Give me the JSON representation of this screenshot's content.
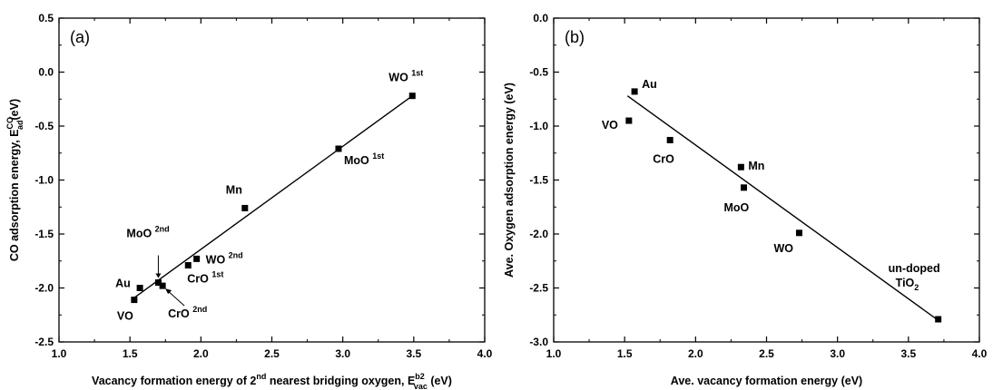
{
  "figure": {
    "panels": [
      {
        "id": "a",
        "panel_label": "(a)",
        "ylabel_main": "CO adsorption energy, E",
        "ylabel_sup": "CO",
        "ylabel_sub": "ad",
        "ylabel_tail": "(eV)",
        "xlabel_main": "Vacancy formation energy of 2",
        "xlabel_sup": "nd",
        "xlabel_mid": " nearest bridging oxygen, E",
        "xlabel_sup2": "b2",
        "xlabel_sub2": "vac",
        "xlabel_tail": " (eV)"
      },
      {
        "id": "b",
        "panel_label": "(b)",
        "ylabel_main": "Ave. Oxygen adsorption energy (eV)",
        "xlabel_main": "Ave. vacancy formation energy (eV)"
      }
    ]
  },
  "chart_data": [
    {
      "type": "scatter",
      "panel": "(a)",
      "xlim": [
        1.0,
        4.0
      ],
      "ylim": [
        -2.5,
        0.5
      ],
      "xticks": [
        1.0,
        1.5,
        2.0,
        2.5,
        3.0,
        3.5,
        4.0
      ],
      "yticks": [
        -2.5,
        -2.0,
        -1.5,
        -1.0,
        -0.5,
        0.0,
        0.5
      ],
      "xtick_labels": [
        "1.0",
        "1.5",
        "2.0",
        "2.5",
        "3.0",
        "3.5",
        "4.0"
      ],
      "ytick_labels": [
        "-2.5",
        "-2.0",
        "-1.5",
        "-1.0",
        "-0.5",
        "0.0",
        "0.5"
      ],
      "grid": false,
      "points": [
        {
          "label": "WO",
          "sup": "1st",
          "x": 3.49,
          "y": -0.22
        },
        {
          "label": "MoO",
          "sup": "1st",
          "x": 2.97,
          "y": -0.71
        },
        {
          "label": "Mn",
          "sup": "",
          "x": 2.31,
          "y": -1.26
        },
        {
          "label": "WO",
          "sup": "2nd",
          "x": 1.97,
          "y": -1.73
        },
        {
          "label": "CrO",
          "sup": "1st",
          "x": 1.91,
          "y": -1.79
        },
        {
          "label": "MoO",
          "sup": "2nd",
          "x": 1.7,
          "y": -1.95
        },
        {
          "label": "CrO",
          "sup": "2nd",
          "x": 1.73,
          "y": -1.98
        },
        {
          "label": "Au",
          "sup": "",
          "x": 1.57,
          "y": -2.0
        },
        {
          "label": "VO",
          "sup": "",
          "x": 1.53,
          "y": -2.11
        }
      ],
      "fit_line": {
        "x": [
          1.52,
          3.49
        ],
        "y": [
          -2.1,
          -0.22
        ]
      }
    },
    {
      "type": "scatter",
      "panel": "(b)",
      "xlim": [
        1.0,
        4.0
      ],
      "ylim": [
        -3.0,
        0.0
      ],
      "xticks": [
        1.0,
        1.5,
        2.0,
        2.5,
        3.0,
        3.5,
        4.0
      ],
      "yticks": [
        -3.0,
        -2.5,
        -2.0,
        -1.5,
        -1.0,
        -0.5,
        0.0
      ],
      "xtick_labels": [
        "1.0",
        "1.5",
        "2.0",
        "2.5",
        "3.0",
        "3.5",
        "4.0"
      ],
      "ytick_labels": [
        "-3.0",
        "-2.5",
        "-2.0",
        "-1.5",
        "-1.0",
        "-0.5",
        "0.0"
      ],
      "grid": false,
      "points": [
        {
          "label": "Au",
          "sub": "",
          "x": 1.57,
          "y": -0.68
        },
        {
          "label": "VO",
          "sub": "",
          "x": 1.53,
          "y": -0.95
        },
        {
          "label": "CrO",
          "sub": "",
          "x": 1.82,
          "y": -1.13
        },
        {
          "label": "Mn",
          "sub": "",
          "x": 2.32,
          "y": -1.38
        },
        {
          "label": "MoO",
          "sub": "",
          "x": 2.34,
          "y": -1.57
        },
        {
          "label": "WO",
          "sub": "",
          "x": 2.73,
          "y": -1.99
        },
        {
          "label": "un-doped",
          "line2": "TiO",
          "sub": "2",
          "x": 3.71,
          "y": -2.79
        }
      ],
      "fit_line": {
        "x": [
          1.52,
          3.71
        ],
        "y": [
          -0.72,
          -2.8
        ]
      }
    }
  ]
}
